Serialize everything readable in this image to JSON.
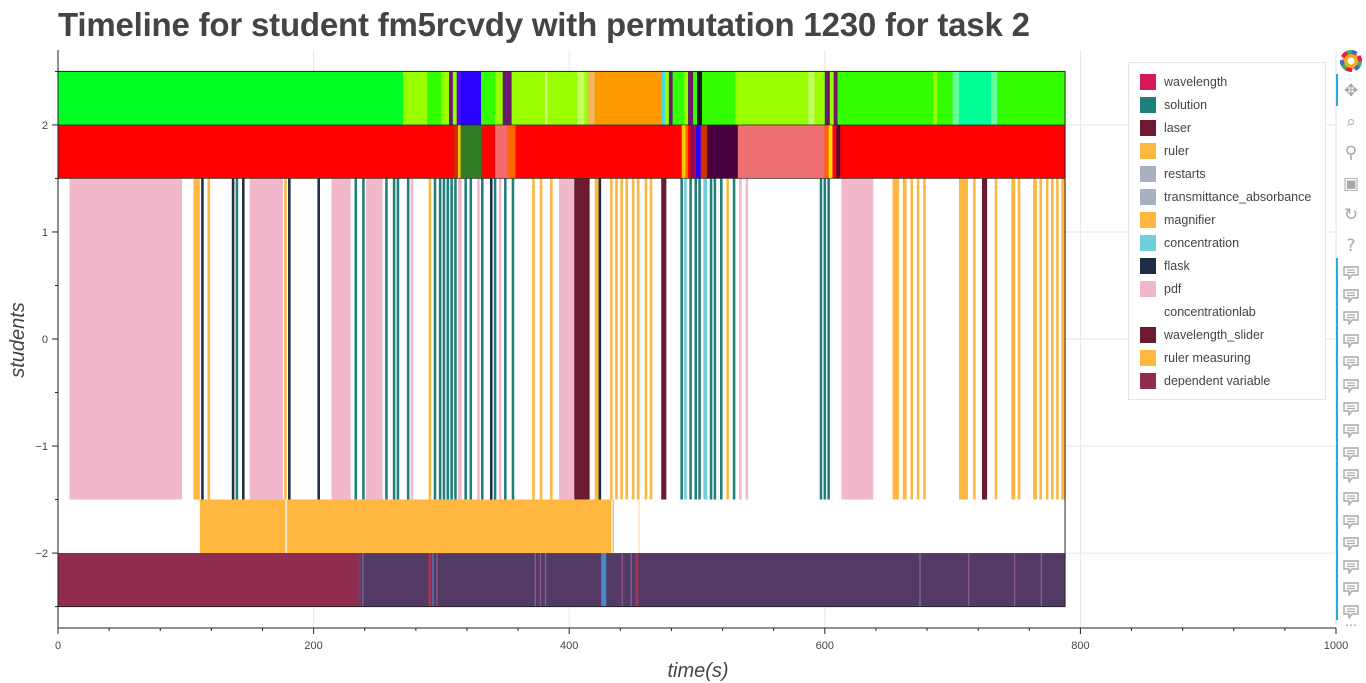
{
  "title": "Timeline for student fm5rcvdy with permutation 1230 for task 2",
  "legend": {
    "items": [
      {
        "label": "wavelength",
        "color": "#d6185a"
      },
      {
        "label": "solution",
        "color": "#1f7f7a"
      },
      {
        "label": "laser",
        "color": "#6b1a2f"
      },
      {
        "label": "ruler",
        "color": "#ffb740"
      },
      {
        "label": "restarts",
        "color": "#a7b0bf"
      },
      {
        "label": "transmittance_absorbance",
        "color": "#a7b0bf"
      },
      {
        "label": "magnifier",
        "color": "#ffb740"
      },
      {
        "label": "concentration",
        "color": "#6fd0dc"
      },
      {
        "label": "flask",
        "color": "#1f2d45"
      },
      {
        "label": "pdf",
        "color": "#f0b8ca"
      },
      {
        "label": "concentrationlab",
        "color": "#ffffff"
      },
      {
        "label": "wavelength_slider",
        "color": "#6b1a2f"
      },
      {
        "label": "ruler measuring",
        "color": "#ffb740"
      },
      {
        "label": "dependent variable",
        "color": "#922b50"
      }
    ]
  },
  "toolbar": {
    "tools": [
      {
        "name": "pan",
        "icon": "pan-icon",
        "glyph": "✥"
      },
      {
        "name": "box-zoom",
        "icon": "box-zoom-icon",
        "glyph": "⌕"
      },
      {
        "name": "wheel-zoom",
        "icon": "wheel-zoom-icon",
        "glyph": "⚲"
      },
      {
        "name": "save",
        "icon": "save-icon",
        "glyph": "▣"
      },
      {
        "name": "reset",
        "icon": "reset-icon",
        "glyph": "↻"
      },
      {
        "name": "help",
        "icon": "help-icon",
        "glyph": "?"
      }
    ],
    "hover_tool_count": 16
  },
  "chart_data": {
    "type": "timeline",
    "title": "Timeline for student fm5rcvdy with permutation 1230 for task 2",
    "xlabel": "time(s)",
    "ylabel": "students",
    "xlim": [
      0,
      1000
    ],
    "ylim": [
      -2.7,
      2.7
    ],
    "xticks": [
      0,
      200,
      400,
      600,
      800,
      1000
    ],
    "yticks": [
      -2,
      -1,
      0,
      1,
      2
    ],
    "grid": true,
    "legend_position": "top-right",
    "bands": [
      {
        "name": "green-band",
        "y": [
          2.0,
          2.5
        ],
        "background": "#00ff22",
        "segments": [
          [
            270,
            289,
            "#99ff00"
          ],
          [
            289,
            300,
            "#33ff00"
          ],
          [
            300,
            306,
            "#99ff00"
          ],
          [
            306,
            309,
            "#6b1a6b"
          ],
          [
            309,
            312,
            "#99ff00"
          ],
          [
            312,
            315,
            "#5a00ff"
          ],
          [
            315,
            331,
            "#2a00ff"
          ],
          [
            331,
            342,
            "#33ff00"
          ],
          [
            342,
            348,
            "#99ff00"
          ],
          [
            348,
            355,
            "#6b1a6b"
          ],
          [
            355,
            381,
            "#99ff00"
          ],
          [
            381,
            383,
            "#d9ff80"
          ],
          [
            383,
            406,
            "#99ff00"
          ],
          [
            406,
            412,
            "#c8ff60"
          ],
          [
            412,
            415,
            "#99ff00"
          ],
          [
            415,
            420,
            "#ffb060"
          ],
          [
            420,
            472,
            "#ff9900"
          ],
          [
            472,
            475,
            "#44dddd"
          ],
          [
            475,
            478,
            "#99ff00"
          ],
          [
            478,
            481,
            "#6b1a6b"
          ],
          [
            481,
            490,
            "#33ff00"
          ],
          [
            490,
            493,
            "#99ff00"
          ],
          [
            493,
            497,
            "#6b1a6b"
          ],
          [
            497,
            500,
            "#33ff00"
          ],
          [
            500,
            504,
            "#1a1a1a"
          ],
          [
            504,
            530,
            "#33ff00"
          ],
          [
            530,
            587,
            "#99ff00"
          ],
          [
            587,
            592,
            "#c8ff60"
          ],
          [
            592,
            600,
            "#99ff00"
          ],
          [
            600,
            604,
            "#6b1a6b"
          ],
          [
            604,
            607,
            "#99ff00"
          ],
          [
            607,
            610,
            "#6b1a6b"
          ],
          [
            610,
            685,
            "#33ff00"
          ],
          [
            685,
            688,
            "#99ff00"
          ],
          [
            688,
            700,
            "#33ff00"
          ],
          [
            700,
            705,
            "#66ff99"
          ],
          [
            705,
            730,
            "#00ff99"
          ],
          [
            730,
            735,
            "#66ff99"
          ],
          [
            735,
            788,
            "#33ff00"
          ]
        ]
      },
      {
        "name": "red-band",
        "y": [
          1.5,
          2.0
        ],
        "background": "#ff0000",
        "segments": [
          [
            310,
            313,
            "#cc3300"
          ],
          [
            313,
            315,
            "#ffd000"
          ],
          [
            315,
            332,
            "#2e7d22"
          ],
          [
            332,
            342,
            "#ff0000"
          ],
          [
            342,
            352,
            "#f36b6b"
          ],
          [
            352,
            358,
            "#ff6600"
          ],
          [
            488,
            491,
            "#ffcc00"
          ],
          [
            491,
            493,
            "#ff6600"
          ],
          [
            495,
            498,
            "#6b1a6b"
          ],
          [
            499,
            503,
            "#2a00ff"
          ],
          [
            503,
            508,
            "#cc3300"
          ],
          [
            508,
            532,
            "#4a0040"
          ],
          [
            532,
            600,
            "#ee6f6f"
          ],
          [
            600,
            603,
            "#ff6600"
          ],
          [
            603,
            606,
            "#ffe000"
          ],
          [
            606,
            609,
            "#ff0000"
          ],
          [
            609,
            612,
            "#4a0040"
          ]
        ]
      },
      {
        "name": "activity-band",
        "y": [
          -1.5,
          1.5
        ],
        "background": "#ffffff",
        "segments": [
          [
            9,
            97,
            "#f0b8ca"
          ],
          [
            106,
            111,
            "#ffb740"
          ],
          [
            112,
            114,
            "#1f2d45"
          ],
          [
            117,
            119,
            "#ffb740"
          ],
          [
            136,
            138,
            "#1f2d45"
          ],
          [
            139,
            141,
            "#1f7f7a"
          ],
          [
            144,
            146,
            "#1f2d45"
          ],
          [
            150,
            176,
            "#f0b8ca"
          ],
          [
            177,
            179,
            "#ffb740"
          ],
          [
            180,
            182,
            "#1f2d45"
          ],
          [
            203,
            205,
            "#1f2d45"
          ],
          [
            214,
            229,
            "#f0b8ca"
          ],
          [
            232,
            234,
            "#1f7f7a"
          ],
          [
            238,
            240,
            "#1f7f7a"
          ],
          [
            241,
            254,
            "#f0b8ca"
          ],
          [
            256,
            258,
            "#1f7f7a"
          ],
          [
            262,
            264,
            "#1f7f7a"
          ],
          [
            265,
            267,
            "#1f7f7a"
          ],
          [
            273,
            275,
            "#1f7f7a"
          ],
          [
            276,
            278,
            "#f0b8ca"
          ],
          [
            290,
            292,
            "#ffb740"
          ],
          [
            294,
            296,
            "#1f7f7a"
          ],
          [
            298,
            300,
            "#1f7f7a"
          ],
          [
            301,
            303,
            "#1f7f7a"
          ],
          [
            304,
            306,
            "#1f7f7a"
          ],
          [
            307,
            309,
            "#1f7f7a"
          ],
          [
            310,
            312,
            "#1f7f7a"
          ],
          [
            313,
            316,
            "#f0b8ca"
          ],
          [
            318,
            320,
            "#1f7f7a"
          ],
          [
            322,
            324,
            "#1f7f7a"
          ],
          [
            328,
            330,
            "#f0b8ca"
          ],
          [
            331,
            333,
            "#1f7f7a"
          ],
          [
            338,
            340,
            "#1f2d45"
          ],
          [
            341,
            343,
            "#1f7f7a"
          ],
          [
            345,
            347,
            "#f0b8ca"
          ],
          [
            349,
            351,
            "#1f7f7a"
          ],
          [
            355,
            357,
            "#1f7f7a"
          ],
          [
            371,
            373,
            "#ffb740"
          ],
          [
            377,
            379,
            "#ffb740"
          ],
          [
            385,
            387,
            "#ffb740"
          ],
          [
            392,
            408,
            "#f0b8ca"
          ],
          [
            412,
            414,
            "#ffb740"
          ],
          [
            420,
            424,
            "#ffb740"
          ],
          [
            404,
            416,
            "#6b1a2f"
          ],
          [
            423,
            425,
            "#1f2d45"
          ],
          [
            432,
            434,
            "#ffb740"
          ],
          [
            436,
            438,
            "#ffb740"
          ],
          [
            440,
            442,
            "#ffb740"
          ],
          [
            444,
            446,
            "#ffb740"
          ],
          [
            449,
            451,
            "#ffb740"
          ],
          [
            453,
            455,
            "#ffb740"
          ],
          [
            459,
            461,
            "#ffb740"
          ],
          [
            463,
            465,
            "#ffb740"
          ],
          [
            472,
            476,
            "#6b1a2f"
          ],
          [
            487,
            489,
            "#1f7f7a"
          ],
          [
            490,
            492,
            "#6fd0dc"
          ],
          [
            494,
            496,
            "#1f7f7a"
          ],
          [
            498,
            500,
            "#1f7f7a"
          ],
          [
            501,
            503,
            "#1f7f7a"
          ],
          [
            505,
            508,
            "#6fd0dc"
          ],
          [
            510,
            512,
            "#1f7f7a"
          ],
          [
            513,
            515,
            "#1f7f7a"
          ],
          [
            518,
            520,
            "#1f7f7a"
          ],
          [
            523,
            525,
            "#ffb740"
          ],
          [
            528,
            530,
            "#1f7f7a"
          ],
          [
            533,
            535,
            "#f0b8ca"
          ],
          [
            538,
            540,
            "#f0b8ca"
          ],
          [
            596,
            598,
            "#1f7f7a"
          ],
          [
            599,
            601,
            "#1f7f7a"
          ],
          [
            602,
            604,
            "#1f7f7a"
          ],
          [
            613,
            638,
            "#f0b8ca"
          ],
          [
            653,
            658,
            "#ffb740"
          ],
          [
            661,
            664,
            "#ffb740"
          ],
          [
            667,
            669,
            "#ffb740"
          ],
          [
            672,
            674,
            "#ffb740"
          ],
          [
            677,
            679,
            "#ffb740"
          ],
          [
            705,
            712,
            "#ffb740"
          ],
          [
            716,
            718,
            "#ffb740"
          ],
          [
            723,
            727,
            "#6b1a2f"
          ],
          [
            733,
            735,
            "#ffb740"
          ],
          [
            746,
            749,
            "#ffb740"
          ],
          [
            751,
            753,
            "#ffb740"
          ],
          [
            763,
            766,
            "#ffb740"
          ],
          [
            768,
            770,
            "#ffb740"
          ],
          [
            773,
            775,
            "#ffb740"
          ],
          [
            777,
            779,
            "#ffb740"
          ],
          [
            781,
            783,
            "#ffb740"
          ],
          [
            785,
            788,
            "#ffb740"
          ]
        ]
      },
      {
        "name": "ruler-band",
        "y": [
          -2.0,
          -1.5
        ],
        "background": "#ffffff",
        "segments": [
          [
            111,
            178,
            "#ffb740"
          ],
          [
            179,
            433,
            "#ffb740"
          ],
          [
            434,
            435,
            "#ffb740"
          ],
          [
            454,
            455,
            "#f5e2b8"
          ]
        ]
      },
      {
        "name": "variable-band",
        "y": [
          -2.5,
          -2.0
        ],
        "background": "#523a64",
        "segments": [
          [
            0,
            235,
            "#922b50"
          ],
          [
            235,
            237,
            "#7a3a64"
          ],
          [
            238,
            239,
            "#7a6a9a"
          ],
          [
            290,
            292,
            "#aa3355"
          ],
          [
            293,
            294,
            "#4a88c8"
          ],
          [
            296,
            297,
            "#8a5a8a"
          ],
          [
            373,
            374,
            "#7a6a9a"
          ],
          [
            377,
            378,
            "#8a5a8a"
          ],
          [
            381,
            382,
            "#7a6a9a"
          ],
          [
            425,
            429,
            "#4a88c8"
          ],
          [
            441,
            442,
            "#8a5a8a"
          ],
          [
            448,
            449,
            "#7a6a9a"
          ],
          [
            452,
            454,
            "#aa3355"
          ],
          [
            674,
            675,
            "#7a6a9a"
          ],
          [
            712,
            713,
            "#8a5a8a"
          ],
          [
            748,
            749,
            "#8a5a8a"
          ],
          [
            769,
            770,
            "#7a6a9a"
          ]
        ]
      }
    ]
  }
}
